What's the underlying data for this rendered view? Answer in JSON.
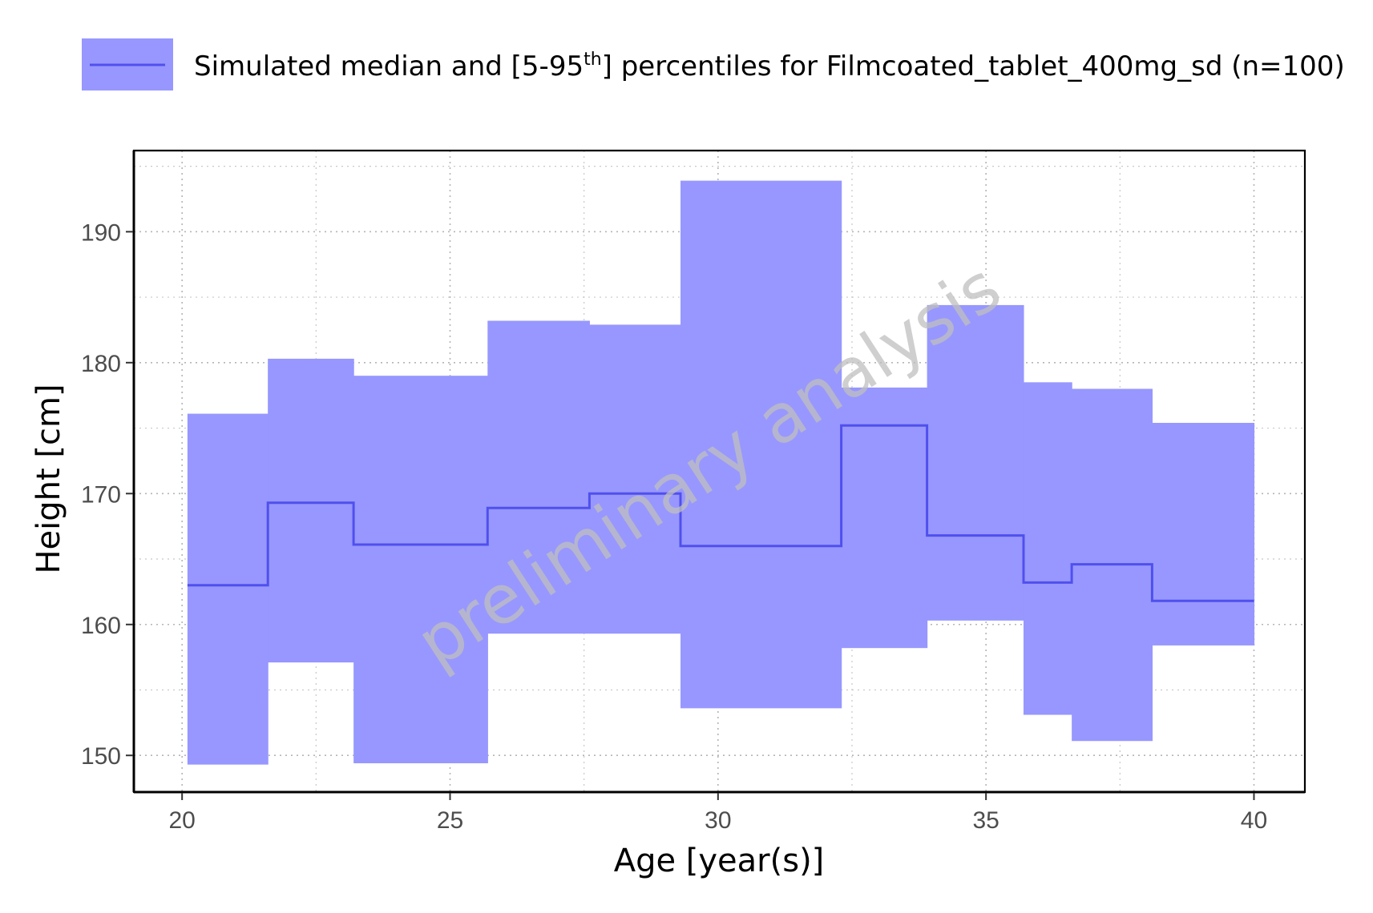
{
  "chart_data": {
    "type": "area",
    "legend": {
      "position": "top",
      "label_prefix": "Simulated median and [5-95",
      "label_superscript": "th",
      "label_suffix": "] percentiles for Filmcoated_tablet_400mg_sd (n=100)"
    },
    "xlabel": "Age [year(s)]",
    "ylabel": "Height [cm]",
    "xlim": [
      19.1,
      40.95
    ],
    "ylim": [
      147.2,
      196.2
    ],
    "xticks": [
      20,
      25,
      30,
      35,
      40
    ],
    "yticks": [
      150,
      160,
      170,
      180,
      190
    ],
    "grid": true,
    "watermark": "preliminary analysis",
    "colors": {
      "band": "#9797ff",
      "median": "#5050ee",
      "grid": "#c8c8c8",
      "axis": "#000000"
    },
    "bins": [
      {
        "x0": 20.1,
        "x1": 21.6,
        "median": 163.0,
        "p5": 149.3,
        "p95": 176.1
      },
      {
        "x0": 21.6,
        "x1": 23.2,
        "median": 169.3,
        "p5": 157.1,
        "p95": 180.3
      },
      {
        "x0": 23.2,
        "x1": 25.7,
        "median": 166.1,
        "p5": 149.4,
        "p95": 179.0
      },
      {
        "x0": 25.7,
        "x1": 27.6,
        "median": 168.9,
        "p5": 159.3,
        "p95": 183.2
      },
      {
        "x0": 27.6,
        "x1": 29.3,
        "median": 170.0,
        "p5": 159.3,
        "p95": 182.9
      },
      {
        "x0": 29.3,
        "x1": 32.3,
        "median": 166.0,
        "p5": 153.6,
        "p95": 193.9
      },
      {
        "x0": 32.3,
        "x1": 33.9,
        "median": 175.2,
        "p5": 158.2,
        "p95": 178.1
      },
      {
        "x0": 33.9,
        "x1": 35.7,
        "median": 166.8,
        "p5": 160.3,
        "p95": 184.4
      },
      {
        "x0": 35.7,
        "x1": 36.6,
        "median": 163.2,
        "p5": 153.1,
        "p95": 178.5
      },
      {
        "x0": 36.6,
        "x1": 38.1,
        "median": 164.6,
        "p5": 151.1,
        "p95": 178.0
      },
      {
        "x0": 38.1,
        "x1": 40.0,
        "median": 161.8,
        "p5": 158.4,
        "p95": 175.4
      }
    ]
  }
}
